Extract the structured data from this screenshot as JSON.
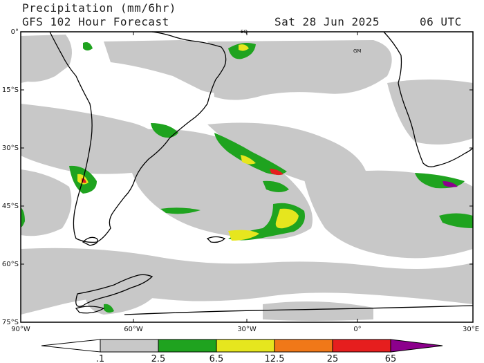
{
  "header": {
    "title": "Precipitation (mm/6hr)",
    "model_line": "GFS 102 Hour Forecast",
    "date": "Sat 28 Jun 2025",
    "time": "06 UTC"
  },
  "map": {
    "lat_labels": [
      "0°",
      "15°S",
      "30°S",
      "45°S",
      "60°S",
      "75°S"
    ],
    "lon_labels": [
      "90°W",
      "60°W",
      "30°W",
      "0°",
      "30°E"
    ],
    "markers": {
      "equator": "EQ",
      "greenwich": "GM"
    }
  },
  "colorbar": {
    "ticks": [
      ".1",
      "2.5",
      "6.5",
      "12.5",
      "25",
      "65"
    ],
    "colors": [
      "#ffffff",
      "#c8c8c8",
      "#1fa31f",
      "#e6e61e",
      "#f07818",
      "#e61e1e",
      "#8c008c"
    ]
  }
}
